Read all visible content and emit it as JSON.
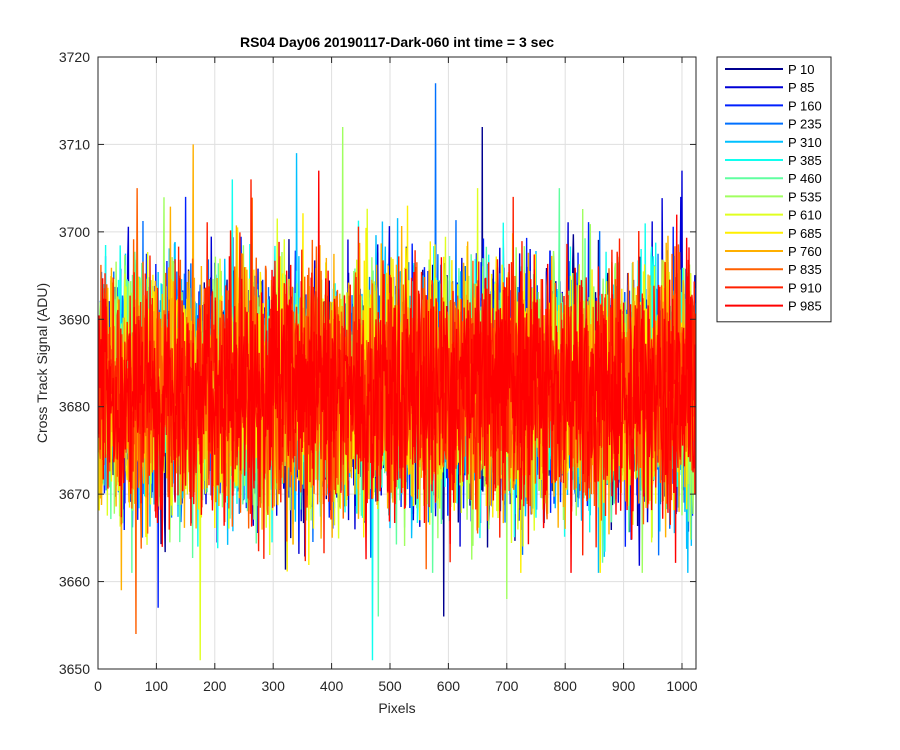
{
  "chart_data": {
    "type": "line",
    "title": "RS04 Day06 20190117-Dark-060 int time = 3 sec",
    "xlabel": "Pixels",
    "ylabel": "Cross Track Signal (ADU)",
    "xlim": [
      0,
      1024
    ],
    "ylim": [
      3650,
      3720
    ],
    "xticks": [
      0,
      100,
      200,
      300,
      400,
      500,
      600,
      700,
      800,
      900,
      1000
    ],
    "yticks": [
      3650,
      3660,
      3670,
      3680,
      3690,
      3700,
      3710,
      3720
    ],
    "grid": true,
    "legend_position": "outside-top-right",
    "series_profile": {
      "n_points": 1024,
      "x_start": 1,
      "x_end": 1024,
      "mean": 3682,
      "typical_range": [
        3663,
        3702
      ]
    },
    "series": [
      {
        "name": "P 10",
        "color": "#00008f",
        "peak": {
          "x": 658,
          "y": 3712
        },
        "trough": {
          "x": 592,
          "y": 3656
        }
      },
      {
        "name": "P 85",
        "color": "#0000d6",
        "peak": {
          "x": 1000,
          "y": 3707
        },
        "trough": {
          "x": 620,
          "y": 3664
        }
      },
      {
        "name": "P 160",
        "color": "#0020ff",
        "peak": {
          "x": 150,
          "y": 3704
        },
        "trough": {
          "x": 103,
          "y": 3657
        }
      },
      {
        "name": "P 235",
        "color": "#0070ff",
        "peak": {
          "x": 578,
          "y": 3717
        },
        "trough": {
          "x": 960,
          "y": 3663
        }
      },
      {
        "name": "P 310",
        "color": "#00c0ff",
        "peak": {
          "x": 340,
          "y": 3709
        },
        "trough": {
          "x": 1010,
          "y": 3661
        }
      },
      {
        "name": "P 385",
        "color": "#10ffef",
        "peak": {
          "x": 230,
          "y": 3706
        },
        "trough": {
          "x": 470,
          "y": 3651
        }
      },
      {
        "name": "P 460",
        "color": "#60ffa0",
        "peak": {
          "x": 790,
          "y": 3705
        },
        "trough": {
          "x": 480,
          "y": 3656
        }
      },
      {
        "name": "P 535",
        "color": "#a0ff60",
        "peak": {
          "x": 419,
          "y": 3712
        },
        "trough": {
          "x": 700,
          "y": 3658
        }
      },
      {
        "name": "P 610",
        "color": "#e0ff20",
        "peak": {
          "x": 650,
          "y": 3705
        },
        "trough": {
          "x": 175,
          "y": 3651
        }
      },
      {
        "name": "P 685",
        "color": "#ffef00",
        "peak": {
          "x": 530,
          "y": 3703
        },
        "trough": {
          "x": 860,
          "y": 3661
        }
      },
      {
        "name": "P 760",
        "color": "#ffb000",
        "peak": {
          "x": 163,
          "y": 3710
        },
        "trough": {
          "x": 40,
          "y": 3659
        }
      },
      {
        "name": "P 835",
        "color": "#ff6000",
        "peak": {
          "x": 67,
          "y": 3705
        },
        "trough": {
          "x": 65,
          "y": 3654
        }
      },
      {
        "name": "P 910",
        "color": "#ff2000",
        "peak": {
          "x": 262,
          "y": 3706
        },
        "trough": {
          "x": 830,
          "y": 3663
        }
      },
      {
        "name": "P 985",
        "color": "#ff0000",
        "peak": {
          "x": 378,
          "y": 3707
        },
        "trough": {
          "x": 810,
          "y": 3661
        }
      }
    ]
  }
}
